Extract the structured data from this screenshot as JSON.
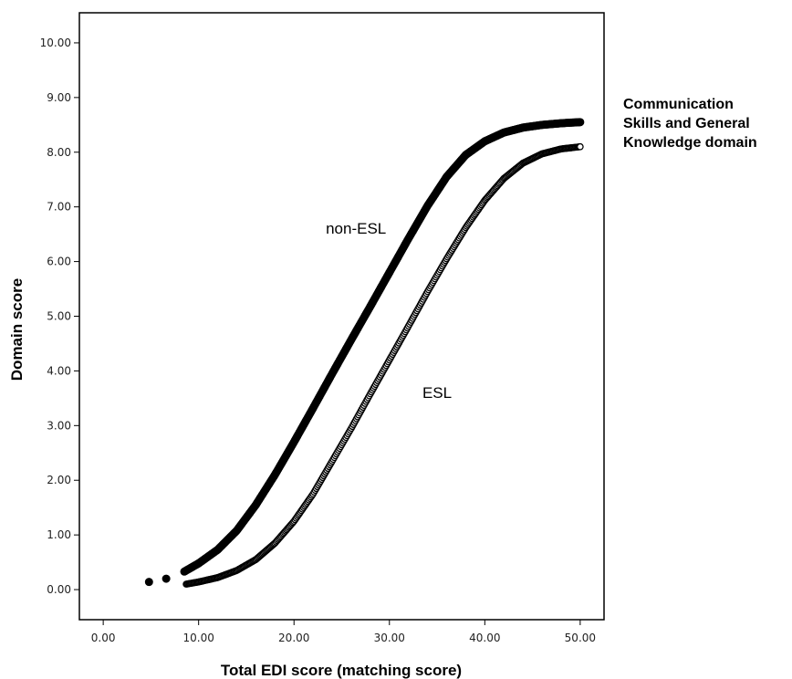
{
  "side_note": {
    "lines": [
      "Communication",
      "Skills and General",
      "Knowledge domain"
    ]
  },
  "chart_data": {
    "type": "scatter",
    "title": "",
    "xlabel": "Total EDI score (matching score)",
    "ylabel": "Domain score",
    "xlim": [
      -2.5,
      52.5
    ],
    "ylim": [
      -0.55,
      10.55
    ],
    "x_ticks": [
      "0.00",
      "10.00",
      "20.00",
      "30.00",
      "40.00",
      "50.00"
    ],
    "y_ticks": [
      "0.00",
      "1.00",
      "2.00",
      "3.00",
      "4.00",
      "5.00",
      "6.00",
      "7.00",
      "8.00",
      "9.00",
      "10.00"
    ],
    "grid": false,
    "series": [
      {
        "name": "non-ESL",
        "marker": "filled-circle",
        "color": "#000000",
        "points": [
          [
            4.8,
            0.14
          ],
          [
            6.6,
            0.2
          ],
          [
            8.5,
            0.33
          ],
          [
            10,
            0.48
          ],
          [
            12,
            0.73
          ],
          [
            14,
            1.08
          ],
          [
            16,
            1.55
          ],
          [
            18,
            2.1
          ],
          [
            20,
            2.7
          ],
          [
            22,
            3.32
          ],
          [
            24,
            3.95
          ],
          [
            26,
            4.57
          ],
          [
            28,
            5.18
          ],
          [
            30,
            5.8
          ],
          [
            32,
            6.42
          ],
          [
            34,
            7.02
          ],
          [
            36,
            7.55
          ],
          [
            38,
            7.95
          ],
          [
            40,
            8.2
          ],
          [
            42,
            8.36
          ],
          [
            44,
            8.45
          ],
          [
            46,
            8.5
          ],
          [
            48,
            8.53
          ],
          [
            50,
            8.55
          ]
        ]
      },
      {
        "name": "ESL",
        "marker": "open-circle",
        "color": "#000000",
        "points": [
          [
            8.7,
            0.1
          ],
          [
            10,
            0.14
          ],
          [
            12,
            0.22
          ],
          [
            14,
            0.35
          ],
          [
            16,
            0.55
          ],
          [
            18,
            0.85
          ],
          [
            20,
            1.25
          ],
          [
            22,
            1.75
          ],
          [
            24,
            2.35
          ],
          [
            26,
            2.95
          ],
          [
            28,
            3.58
          ],
          [
            30,
            4.2
          ],
          [
            32,
            4.82
          ],
          [
            34,
            5.45
          ],
          [
            36,
            6.05
          ],
          [
            38,
            6.62
          ],
          [
            40,
            7.12
          ],
          [
            42,
            7.52
          ],
          [
            44,
            7.8
          ],
          [
            46,
            7.97
          ],
          [
            48,
            8.06
          ],
          [
            50,
            8.1
          ]
        ]
      }
    ],
    "annotations": [
      {
        "text": "non-ESL",
        "x": 26.5,
        "y": 6.51
      },
      {
        "text": "ESL",
        "x": 35.0,
        "y": 3.51
      }
    ]
  }
}
